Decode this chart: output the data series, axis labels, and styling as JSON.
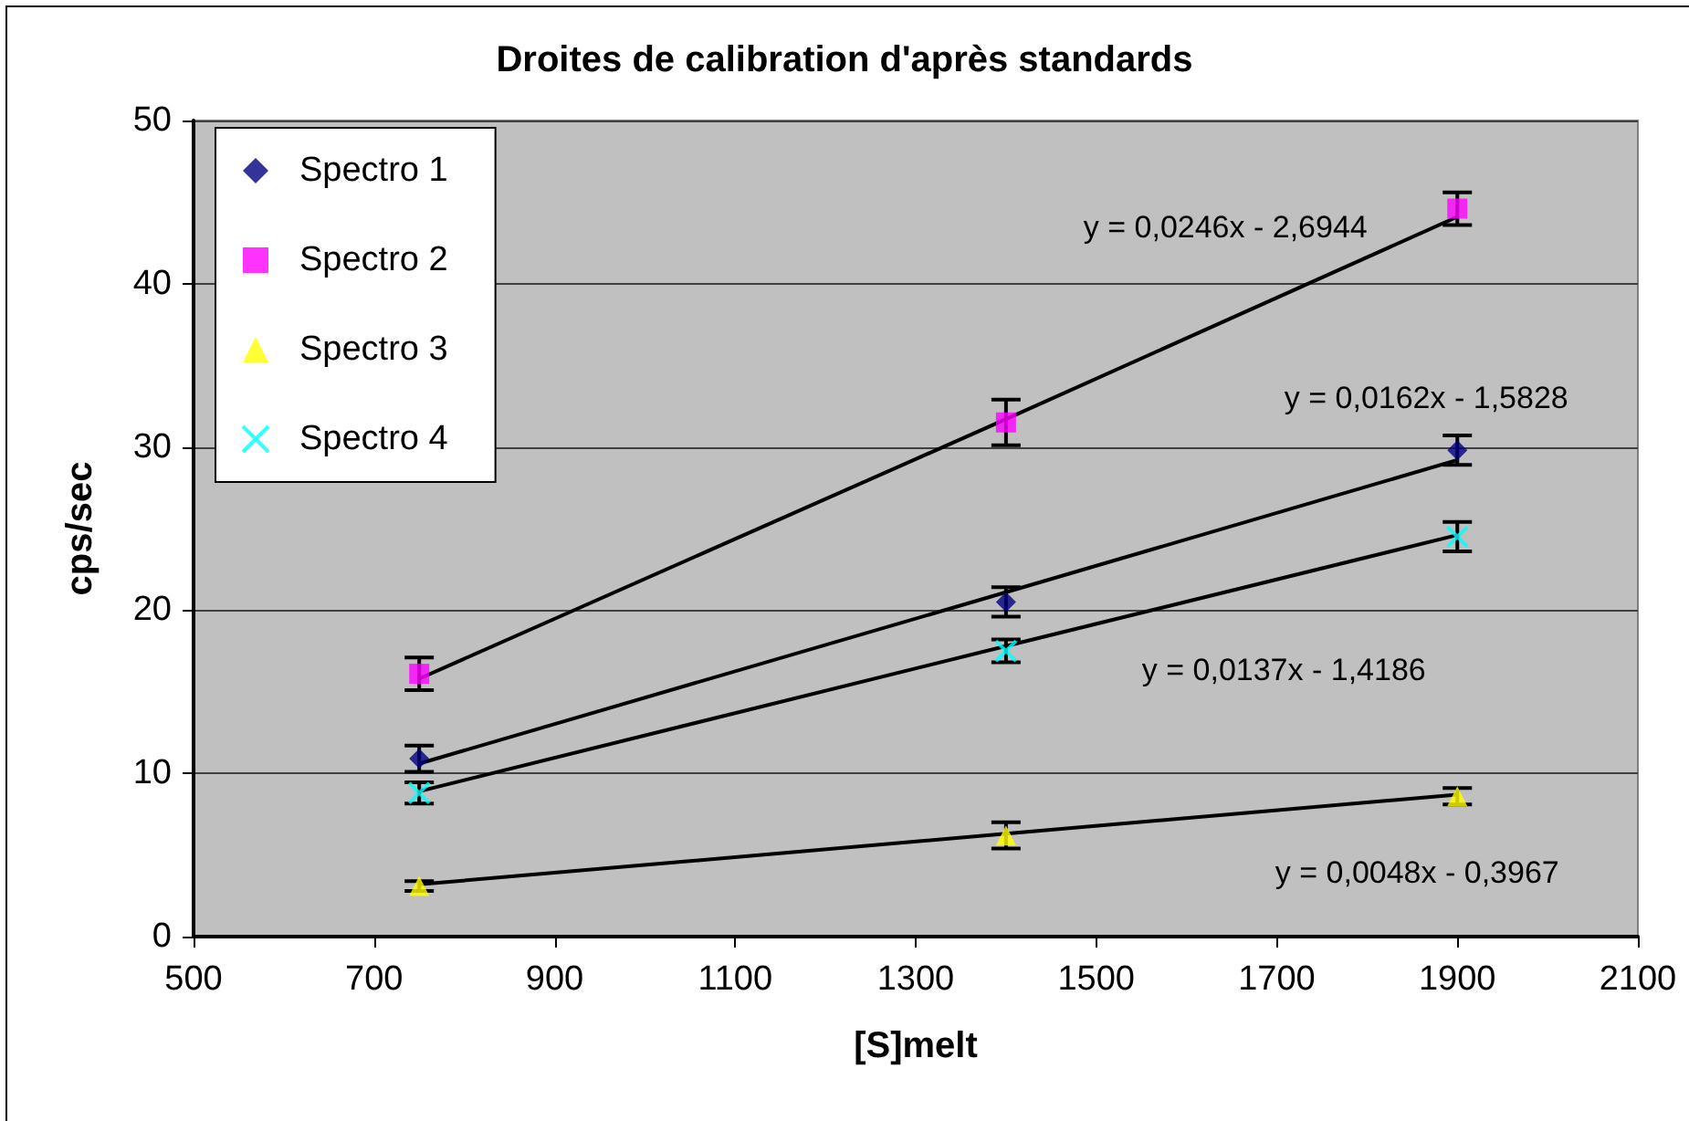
{
  "chart_data": {
    "type": "scatter",
    "title": "Droites de calibration d'après standards",
    "xlabel": "[S]melt",
    "ylabel": "cps/sec",
    "xlim": [
      500,
      2100
    ],
    "xticks": [
      500,
      700,
      900,
      1100,
      1300,
      1500,
      1700,
      1900,
      2100
    ],
    "ylim": [
      0,
      50
    ],
    "yticks": [
      0,
      10,
      20,
      30,
      40,
      50
    ],
    "grid": "y",
    "legend": "top left",
    "x": [
      750,
      1400,
      1900
    ],
    "series": [
      {
        "name": "Spectro 1",
        "color": "#000080",
        "marker": "diamond",
        "values": [
          10.9,
          20.5,
          29.8
        ],
        "errors": [
          0.8,
          0.9,
          0.9
        ]
      },
      {
        "name": "Spectro 2",
        "color": "#ff00ff",
        "marker": "square",
        "values": [
          16.1,
          31.5,
          44.6
        ],
        "errors": [
          1.0,
          1.4,
          1.0
        ]
      },
      {
        "name": "Spectro 3",
        "color": "#ffff00",
        "marker": "triangle",
        "values": [
          3.1,
          6.2,
          8.6
        ],
        "errors": [
          0.3,
          0.8,
          0.5
        ]
      },
      {
        "name": "Spectro 4",
        "color": "#00ffff",
        "marker": "cross",
        "values": [
          8.8,
          17.5,
          24.5
        ],
        "errors": [
          0.65,
          0.7,
          0.9
        ]
      },
      {
        "type": "line",
        "color": "#000000",
        "marker": "none",
        "values": [
          10.6,
          21.1,
          29.2
        ]
      },
      {
        "type": "line",
        "color": "#000000",
        "marker": "none",
        "values": [
          15.8,
          31.7,
          44.1
        ]
      },
      {
        "type": "line",
        "color": "#000000",
        "marker": "none",
        "values": [
          3.2,
          6.3,
          8.7
        ]
      },
      {
        "type": "line",
        "color": "#000000",
        "marker": "none",
        "values": [
          8.9,
          17.8,
          24.6
        ]
      }
    ],
    "annotations": [
      "y = 0,0162x - 1,5828",
      "y = 0,0246x - 2,6944",
      "y = 0,0048x - 0,3967",
      "y = 0,0137x - 1,4186"
    ]
  }
}
